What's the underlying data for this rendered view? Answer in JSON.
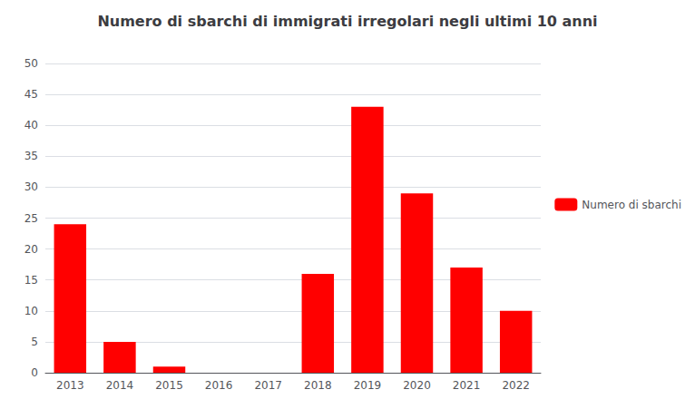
{
  "chart_data": {
    "type": "bar",
    "title": "Numero di sbarchi di immigrati irregolari negli ultimi 10 anni",
    "categories": [
      "2013",
      "2014",
      "2015",
      "2016",
      "2017",
      "2018",
      "2019",
      "2020",
      "2021",
      "2022"
    ],
    "series": [
      {
        "name": "Numero di sbarchi",
        "color": "#ff0000",
        "values": [
          24,
          5,
          1,
          0,
          0,
          16,
          43,
          29,
          17,
          10
        ]
      }
    ],
    "ylim": [
      0,
      50
    ],
    "yticks": [
      0,
      5,
      10,
      15,
      20,
      25,
      30,
      35,
      40,
      45,
      50
    ],
    "grid": true,
    "legend": "right"
  }
}
